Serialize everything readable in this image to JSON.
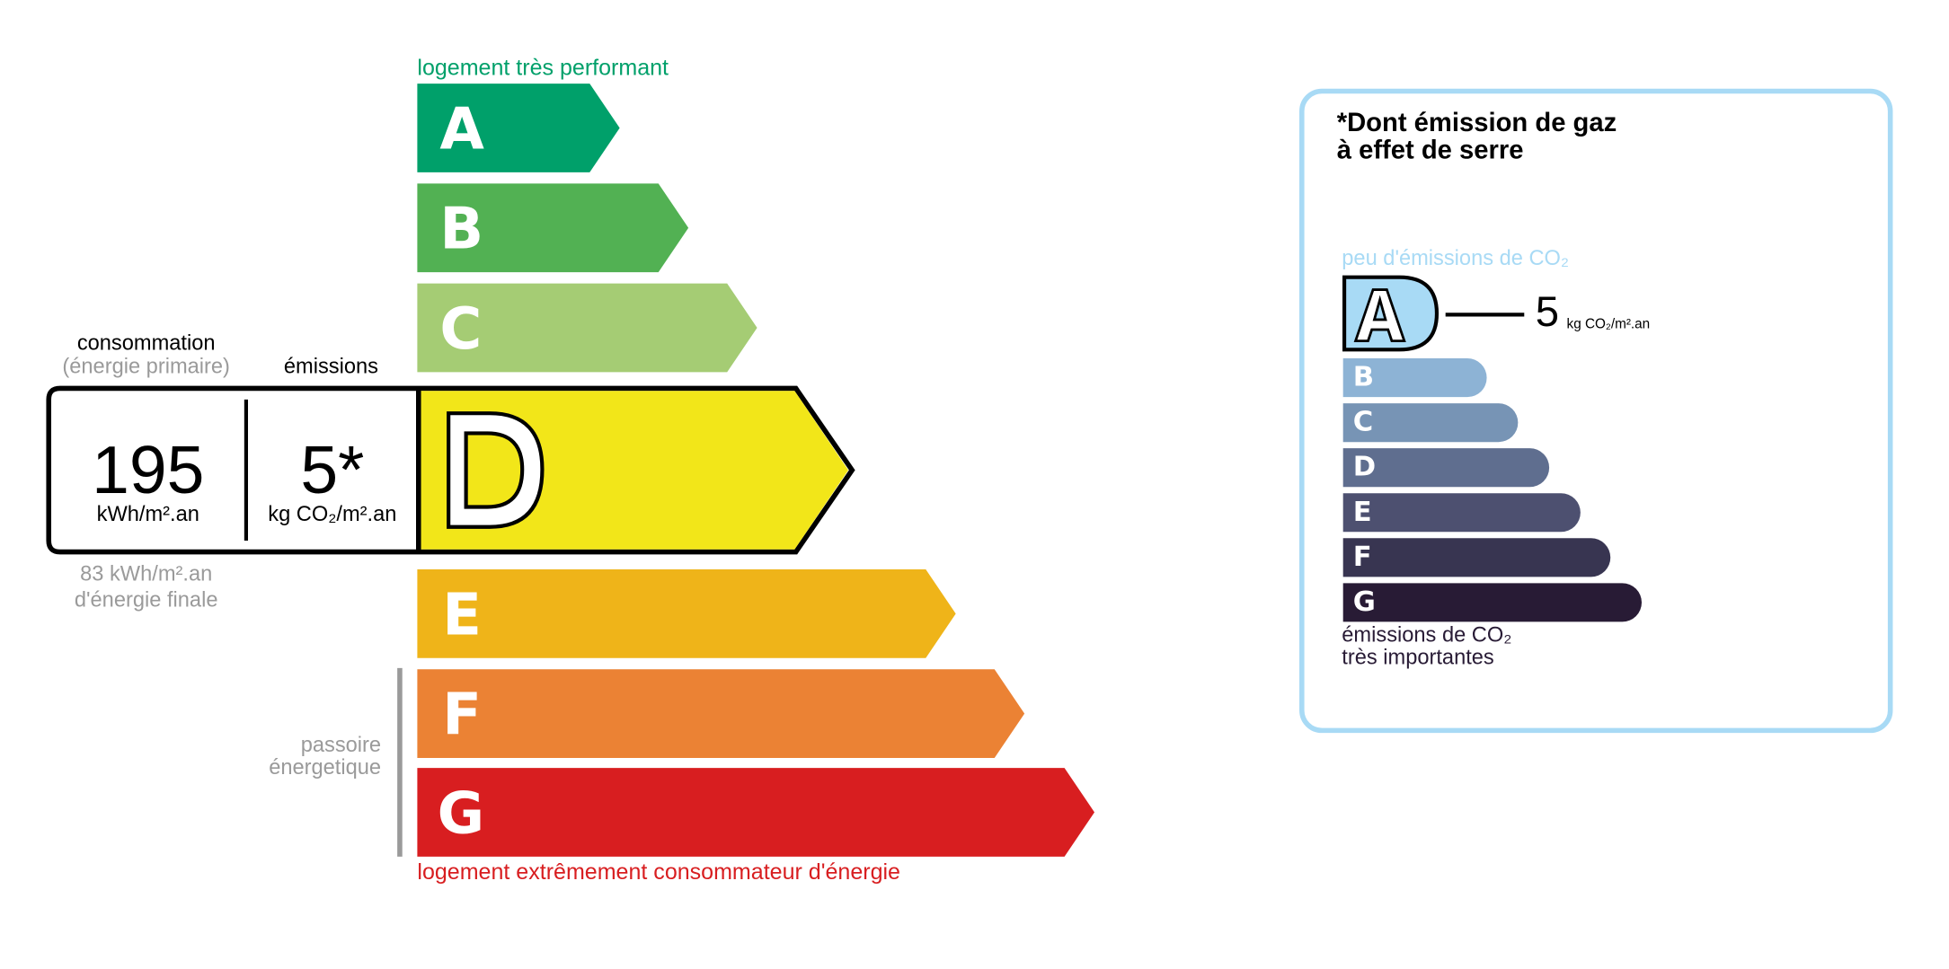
{
  "energy": {
    "top_label": "logement très performant",
    "bottom_label": "logement extrêmement consommateur d'énergie",
    "passoire_line1": "passoire",
    "passoire_line2": "énergetique",
    "classes": [
      {
        "letter": "A",
        "color": "#00a06a"
      },
      {
        "letter": "B",
        "color": "#52b153"
      },
      {
        "letter": "C",
        "color": "#a5cc74"
      },
      {
        "letter": "D",
        "color": "#f2e619"
      },
      {
        "letter": "E",
        "color": "#efb419"
      },
      {
        "letter": "F",
        "color": "#eb8234"
      },
      {
        "letter": "G",
        "color": "#d81e20"
      }
    ],
    "current_class": "D",
    "consumption_label": "consommation",
    "consumption_sublabel": "(énergie primaire)",
    "emissions_label": "émissions",
    "consumption_value": "195",
    "consumption_unit": "kWh/m².an",
    "emissions_value": "5*",
    "emissions_unit": "kg CO₂/m².an",
    "final_energy_value": "83 kWh/m².an",
    "final_energy_label": "d'énergie finale"
  },
  "ges": {
    "title_line1": "*Dont émission de gaz",
    "title_line2": "à effet de serre",
    "top_label": "peu d'émissions de CO₂",
    "bottom_line1": "émissions de CO₂",
    "bottom_line2": "très importantes",
    "current_class": "A",
    "value": "5",
    "unit": "kg CO₂/m².an",
    "border_color": "#a8daf5",
    "classes": [
      {
        "letter": "A",
        "color": "#a8daf5"
      },
      {
        "letter": "B",
        "color": "#8db3d5"
      },
      {
        "letter": "C",
        "color": "#7794b5"
      },
      {
        "letter": "D",
        "color": "#5f6e8f"
      },
      {
        "letter": "E",
        "color": "#4d5070"
      },
      {
        "letter": "F",
        "color": "#383551"
      },
      {
        "letter": "G",
        "color": "#281b35"
      }
    ]
  }
}
